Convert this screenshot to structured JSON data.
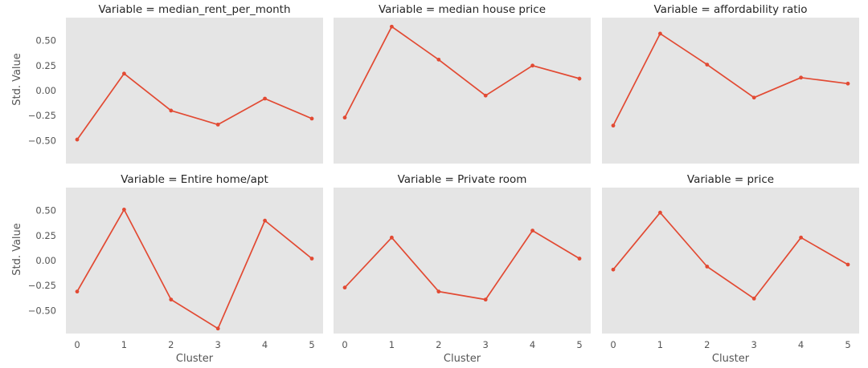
{
  "chart_data": {
    "type": "line",
    "layout": "facet-grid-2x3",
    "xlabel": "Cluster",
    "ylabel": "Std. Value",
    "x": [
      0,
      1,
      2,
      3,
      4,
      5
    ],
    "x_ticks": [
      "0",
      "1",
      "2",
      "3",
      "4",
      "5"
    ],
    "y_ticks": [
      "0.50",
      "0.25",
      "0.00",
      "−0.25",
      "−0.50"
    ],
    "ylim": [
      -0.73,
      0.73
    ],
    "grid": false,
    "line_color": "#e24a33",
    "panel_background": "#e5e5e5",
    "panels": [
      {
        "title": "Variable = median_rent_per_month",
        "values": [
          -0.49,
          0.17,
          -0.2,
          -0.34,
          -0.08,
          -0.28
        ]
      },
      {
        "title": "Variable = median house price",
        "values": [
          -0.27,
          0.64,
          0.31,
          -0.05,
          0.25,
          0.12
        ]
      },
      {
        "title": "Variable = affordability ratio",
        "values": [
          -0.35,
          0.57,
          0.26,
          -0.07,
          0.13,
          0.07
        ]
      },
      {
        "title": "Variable = Entire home/apt",
        "values": [
          -0.31,
          0.51,
          -0.39,
          -0.68,
          0.4,
          0.02
        ]
      },
      {
        "title": "Variable = Private room",
        "values": [
          -0.27,
          0.23,
          -0.31,
          -0.39,
          0.3,
          0.02
        ]
      },
      {
        "title": "Variable = price",
        "values": [
          -0.09,
          0.48,
          -0.06,
          -0.38,
          0.23,
          -0.04
        ]
      }
    ]
  }
}
